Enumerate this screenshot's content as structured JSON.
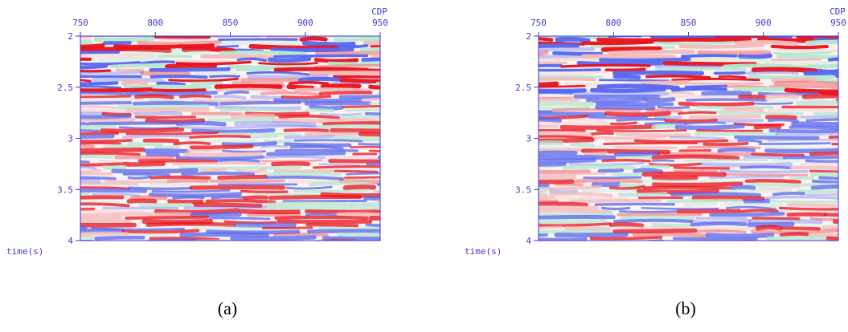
{
  "chart_data": [
    {
      "type": "seismic",
      "xlabel": "CDP",
      "ylabel": "time(s)",
      "caption": "(a)",
      "xlim": [
        750,
        950
      ],
      "xticks": [
        750,
        800,
        850,
        900,
        950
      ],
      "ylim": [
        4,
        2
      ],
      "yticks": [
        2,
        2.5,
        3,
        3.5,
        4
      ],
      "frame_color": "#3a3ad0"
    },
    {
      "type": "seismic",
      "xlabel": "CDP",
      "ylabel": "time(s)",
      "caption": "(b)",
      "xlim": [
        750,
        950
      ],
      "xticks": [
        750,
        800,
        850,
        900,
        950
      ],
      "ylim": [
        4,
        2
      ],
      "yticks": [
        2,
        2.5,
        3,
        3.5,
        4
      ],
      "frame_color": "#3a3ad0"
    }
  ]
}
